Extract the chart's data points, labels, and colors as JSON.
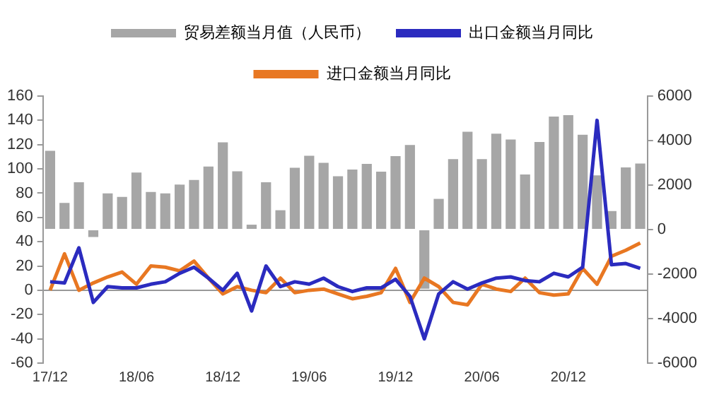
{
  "chart_data": {
    "type": "bar",
    "categories": [
      "17/12",
      null,
      null,
      null,
      null,
      null,
      "18/06",
      null,
      null,
      null,
      null,
      null,
      "18/12",
      null,
      null,
      null,
      null,
      null,
      "19/06",
      null,
      null,
      null,
      null,
      null,
      "19/12",
      null,
      null,
      null,
      null,
      null,
      "20/06",
      null,
      null,
      null,
      null,
      null,
      "20/12",
      null,
      null,
      null,
      null,
      null
    ],
    "series": [
      {
        "name": "贸易差额当月值（人民币）",
        "axis": "y2",
        "color": "#a6a6a6",
        "values": [
          3540,
          1200,
          2130,
          -330,
          1630,
          1470,
          2560,
          1690,
          1630,
          2020,
          2230,
          2830,
          3920,
          2620,
          220,
          2130,
          870,
          2780,
          3320,
          3000,
          2400,
          2700,
          2950,
          2600,
          3300,
          3800,
          -2660,
          1380,
          3170,
          4400,
          3170,
          4310,
          4050,
          2480,
          3940,
          5080,
          5140,
          4260,
          2440,
          830,
          2790,
          2970
        ]
      },
      {
        "name": "出口金额当月同比",
        "type": "line",
        "color": "#2b2bbf",
        "values": [
          7,
          6,
          35,
          -10,
          3,
          2,
          2,
          5,
          7,
          14,
          19,
          10,
          0,
          14,
          -17,
          20,
          3,
          7,
          5,
          10,
          3,
          -1,
          2,
          2,
          9,
          -5,
          -40,
          -3,
          7,
          1,
          6,
          10,
          11,
          8,
          7,
          14,
          11,
          19,
          140,
          21,
          22,
          18
        ]
      },
      {
        "name": "进口金额当月同比",
        "type": "line",
        "color": "#e87722",
        "values": [
          0,
          30,
          0,
          6,
          11,
          15,
          5,
          20,
          19,
          16,
          24,
          10,
          -3,
          3,
          0,
          -2,
          10,
          -2,
          0,
          1,
          -3,
          -7,
          -5,
          -2,
          18,
          -10,
          10,
          3,
          -10,
          -12,
          5,
          1,
          -1,
          10,
          -2,
          -4,
          -3,
          18,
          5,
          28,
          33,
          39
        ]
      }
    ],
    "ylim": [
      -60,
      160
    ],
    "yticks": [
      -60,
      -40,
      -20,
      0,
      20,
      40,
      60,
      80,
      100,
      120,
      140,
      160
    ],
    "y2lim": [
      -6000,
      6000
    ],
    "y2ticks": [
      -6000,
      -4000,
      -2000,
      0,
      2000,
      4000,
      6000
    ],
    "ref_lines": [
      {
        "axis": "y",
        "value": 0,
        "color": "#999999"
      }
    ],
    "grid": false,
    "legend": "top",
    "marker": "none",
    "line_style": "solid"
  }
}
